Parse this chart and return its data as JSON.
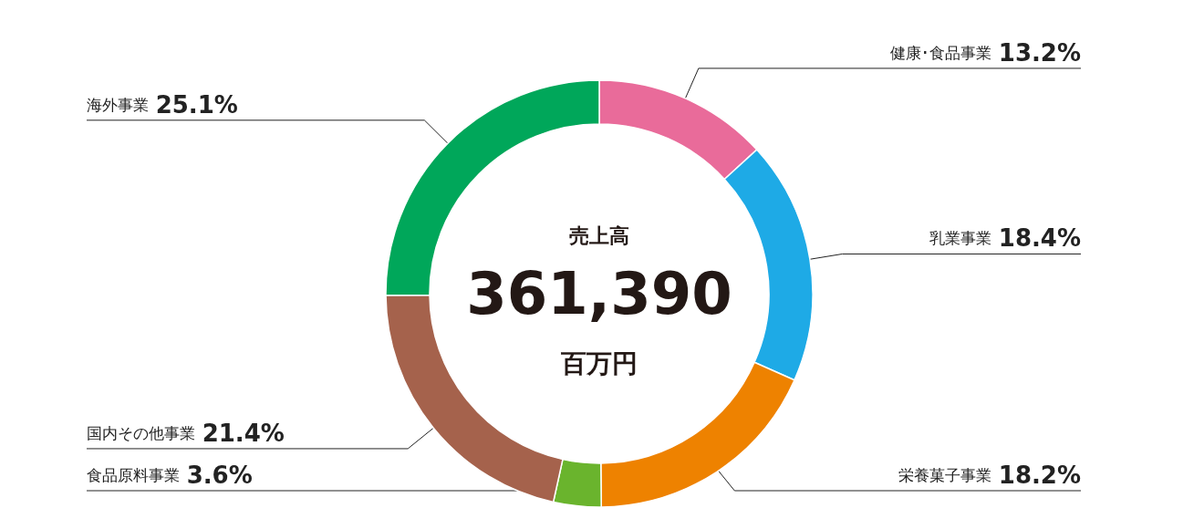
{
  "chart_data": {
    "type": "donut",
    "title": "売上高",
    "annotations": [
      "361,390",
      "百万円"
    ],
    "categories": [
      "健康･食品事業",
      "乳業事業",
      "栄養菓子事業",
      "食品原料事業",
      "国内その他事業",
      "海外事業"
    ],
    "values": [
      13.2,
      18.4,
      18.2,
      3.6,
      21.4,
      25.1
    ],
    "value_labels": [
      "13.2%",
      "18.4%",
      "18.2%",
      "3.6%",
      "21.4%",
      "25.1%"
    ],
    "colors": [
      "#e96b9a",
      "#1eaae6",
      "#ee8200",
      "#6ab42d",
      "#a5624c",
      "#00a75a"
    ],
    "legend": false
  }
}
